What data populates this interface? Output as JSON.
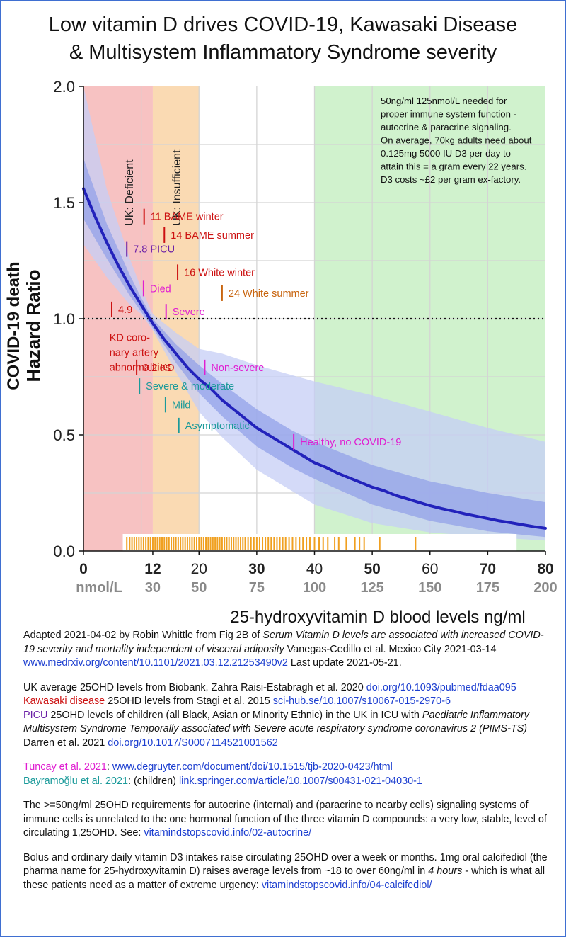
{
  "title_line1": "Low vitamin D drives COVID-19, Kawasaki Disease",
  "title_line2": "& Multisystem Inflammatory Syndrome severity",
  "colors": {
    "deficient": "#f6b7b7",
    "insufficient": "#f9d3a6",
    "sufficient": "#c8f0c4",
    "curve": "#2222bb",
    "band_inner": "#8f9ee8",
    "band_outer": "#c5cdf5",
    "rug": "#f0a020",
    "red": "#cc1111",
    "purple": "#6a1fa6",
    "magenta": "#e01ed1",
    "teal": "#1a9a9a",
    "orange": "#c8650f",
    "link": "#1d3fd0"
  },
  "chart_data": {
    "type": "line",
    "xlabel": "25-hydroxyvitamin D blood levels ng/ml",
    "ylabel_line1": "COVID-19 death",
    "ylabel_line2": "Hazard Ratio",
    "xlim": [
      0,
      80
    ],
    "ylim": [
      0,
      2.0
    ],
    "x_ticks": [
      "0",
      "12",
      "20",
      "30",
      "40",
      "50",
      "60",
      "70",
      "80"
    ],
    "x_tick_values": [
      0,
      12,
      20,
      30,
      40,
      50,
      60,
      70,
      80
    ],
    "x_ticks_bold": [
      0,
      12,
      30,
      50,
      70,
      80
    ],
    "y_ticks": [
      "0.0",
      "0.5",
      "1.0",
      "1.5",
      "2.0"
    ],
    "y_tick_values": [
      0,
      0.5,
      1.0,
      1.5,
      2.0
    ],
    "nmol_label": "nmol/L",
    "nmol_ticks": [
      "30",
      "50",
      "75",
      "100",
      "125",
      "150",
      "175",
      "200"
    ],
    "nmol_tick_values": [
      12,
      20,
      30,
      40,
      50,
      60,
      70,
      80
    ],
    "reference_line": {
      "y": 1.0,
      "style": "dotted"
    },
    "zones": [
      {
        "from": 0,
        "to": 12,
        "label": "UK: Deficient"
      },
      {
        "from": 12,
        "to": 20,
        "label": "UK: Insufficient"
      },
      {
        "from": 40,
        "to": 80,
        "label": ""
      }
    ],
    "series": [
      {
        "values": [
          [
            0,
            1.56
          ],
          [
            2,
            1.44
          ],
          [
            4,
            1.33
          ],
          [
            6,
            1.23
          ],
          [
            8,
            1.14
          ],
          [
            10,
            1.06
          ],
          [
            12,
            0.98
          ],
          [
            14,
            0.91
          ],
          [
            16,
            0.85
          ],
          [
            18,
            0.79
          ],
          [
            20,
            0.74
          ],
          [
            22,
            0.7
          ],
          [
            24,
            0.65
          ],
          [
            26,
            0.61
          ],
          [
            28,
            0.57
          ],
          [
            30,
            0.53
          ],
          [
            32,
            0.5
          ],
          [
            34,
            0.47
          ],
          [
            36,
            0.44
          ],
          [
            38,
            0.41
          ],
          [
            40,
            0.38
          ],
          [
            42,
            0.36
          ],
          [
            44,
            0.335
          ],
          [
            46,
            0.315
          ],
          [
            48,
            0.295
          ],
          [
            50,
            0.275
          ],
          [
            52,
            0.26
          ],
          [
            54,
            0.24
          ],
          [
            56,
            0.225
          ],
          [
            58,
            0.21
          ],
          [
            60,
            0.195
          ],
          [
            62,
            0.183
          ],
          [
            64,
            0.172
          ],
          [
            66,
            0.16
          ],
          [
            68,
            0.15
          ],
          [
            70,
            0.14
          ],
          [
            72,
            0.13
          ],
          [
            74,
            0.122
          ],
          [
            76,
            0.113
          ],
          [
            78,
            0.105
          ],
          [
            80,
            0.098
          ]
        ]
      }
    ],
    "ci_inner": [
      [
        0,
        1.69,
        1.43
      ],
      [
        4,
        1.41,
        1.26
      ],
      [
        8,
        1.19,
        1.1
      ],
      [
        10,
        1.09,
        1.03
      ],
      [
        12,
        1.0,
        0.96
      ],
      [
        16,
        0.89,
        0.81
      ],
      [
        20,
        0.8,
        0.68
      ],
      [
        24,
        0.72,
        0.58
      ],
      [
        30,
        0.61,
        0.45
      ],
      [
        36,
        0.52,
        0.36
      ],
      [
        40,
        0.47,
        0.31
      ],
      [
        50,
        0.37,
        0.2
      ],
      [
        60,
        0.3,
        0.13
      ],
      [
        70,
        0.25,
        0.085
      ],
      [
        80,
        0.21,
        0.06
      ]
    ],
    "ci_outer": [
      [
        0,
        2.0,
        1.32
      ],
      [
        4,
        1.56,
        1.18
      ],
      [
        8,
        1.26,
        1.06
      ],
      [
        10,
        1.13,
        1.02
      ],
      [
        12,
        1.02,
        0.95
      ],
      [
        16,
        0.94,
        0.77
      ],
      [
        20,
        0.87,
        0.6
      ],
      [
        24,
        0.85,
        0.49
      ],
      [
        30,
        0.8,
        0.35
      ],
      [
        40,
        0.73,
        0.2
      ],
      [
        50,
        0.67,
        0.12
      ],
      [
        60,
        0.6,
        0.08
      ],
      [
        70,
        0.53,
        0.06
      ],
      [
        80,
        0.47,
        0.045
      ]
    ],
    "rug_x": [
      7.5,
      8,
      8.4,
      8.8,
      9.2,
      9.6,
      10,
      10.4,
      10.8,
      11.2,
      11.6,
      12,
      12.4,
      12.8,
      13.2,
      13.6,
      14,
      14.4,
      14.8,
      15.2,
      15.6,
      16,
      16.4,
      16.8,
      17.2,
      17.6,
      18,
      18.4,
      18.8,
      19.2,
      19.6,
      20,
      20.4,
      20.8,
      21.2,
      21.6,
      22,
      22.4,
      22.8,
      23.2,
      23.6,
      24,
      24.4,
      24.8,
      25.2,
      25.6,
      26,
      26.4,
      26.8,
      27.2,
      27.6,
      28,
      28.5,
      29,
      29.5,
      30,
      30.5,
      31,
      31.5,
      32,
      32.5,
      33,
      33.5,
      34,
      34.5,
      35,
      35.6,
      36.2,
      36.8,
      37.4,
      38,
      38.6,
      39.2,
      40,
      40.8,
      41.5,
      42.3,
      43.5,
      44.2,
      45.5,
      47,
      47.8,
      48.6,
      51.3,
      57.5
    ],
    "annotations": [
      {
        "x": 10.5,
        "y": 1.44,
        "text": "11 BAME winter",
        "color": "red"
      },
      {
        "x": 14,
        "y": 1.36,
        "text": "14 BAME summer",
        "color": "red"
      },
      {
        "x": 7.5,
        "y": 1.3,
        "text": "7.8 PICU",
        "color": "purple"
      },
      {
        "x": 16.3,
        "y": 1.2,
        "text": "16 White winter",
        "color": "red"
      },
      {
        "x": 24,
        "y": 1.11,
        "text": "24 White summer",
        "color": "orange"
      },
      {
        "x": 10.4,
        "y": 1.13,
        "text": "Died",
        "color": "magenta"
      },
      {
        "x": 14.3,
        "y": 1.03,
        "text": "Severe",
        "color": "magenta"
      },
      {
        "x": 4.9,
        "y": 1.04,
        "text": "4.9",
        "color": "red"
      },
      {
        "x": 9.2,
        "y": 0.79,
        "text": "9.2 KD",
        "color": "red"
      },
      {
        "x": 21,
        "y": 0.79,
        "text": "Non-severe",
        "color": "magenta"
      },
      {
        "x": 9.7,
        "y": 0.71,
        "text": "Severe &  moderate",
        "color": "teal"
      },
      {
        "x": 14.2,
        "y": 0.63,
        "text": "Mild",
        "color": "teal"
      },
      {
        "x": 16.5,
        "y": 0.54,
        "text": "Asymptomatic",
        "color": "teal"
      },
      {
        "x": 36.4,
        "y": 0.47,
        "text": "Healthy, no COVID-19",
        "color": "magenta"
      }
    ],
    "kd_label": [
      "KD coro-",
      "nary artery",
      "abnormalities"
    ],
    "info_box": [
      "50ng/ml 125nmol/L needed for",
      "proper immune system function -",
      "autocrine & paracrine signaling.",
      "On average, 70kg adults need about",
      "0.125mg 5000 IU D3 per day to",
      "attain this = a gram every 22 years.",
      "D3 costs ~£2 per gram ex-factory."
    ]
  },
  "caption": {
    "p1_a": "Adapted 2021-04-02 by Robin Whittle from Fig 2B of ",
    "p1_title": "Serum Vitamin D levels are associated with increased COVID-19 severity and  mortality independent of visceral adiposity",
    "p1_b": " Vanegas-Cedillo et al. Mexico City 2021-03-14 ",
    "p1_link": "www.medrxiv.org/content/10.1101/2021.03.12.21253490v2",
    "p1_c": "  Last update 2021-05-21.",
    "p2_a": "UK average 25OHD levels from Biobank, Zahra Raisi-Estabragh et al. 2020 ",
    "p2_link1": "doi.org/10.1093/pubmed/fdaa095",
    "p2_kd": "Kawasaki disease",
    "p2_b": " 25OHD levels from Stagi et al. 2015 ",
    "p2_link2": "sci-hub.se/10.1007/s10067-015-2970-6",
    "p2_picu": "PICU",
    "p2_c": " 25OHD levels of children (all Black, Asian or Minority Ethnic) in the UK in ICU with ",
    "p2_title": "Paediatric Inflammatory Multisystem Syndrome Temporally associated with Severe acute respiratory syndrome coronavirus 2 (PIMS-TS)",
    "p2_d": " Darren et al. 2021 ",
    "p2_link3": "doi.org/10.1017/S0007114521001562",
    "p3_tuncay": "Tuncay et al. 2021",
    "p3_a": ": ",
    "p3_link1": "www.degruyter.com/document/doi/10.1515/tjb-2020-0423/html",
    "p3_bayr": "Bayramoğlu et al. 2021",
    "p3_b": ": (children) ",
    "p3_link2": "link.springer.com/article/10.1007/s00431-021-04030-1",
    "p4_a": "The >=50ng/ml 25OHD requirements for autocrine (internal) and (paracrine to nearby cells) signaling systems of immune cells is unrelated to the one hormonal function of the three vitamin D compounds: a very low, stable, level of circulating 1,25OHD.  See:  ",
    "p4_link": "vitamindstopscovid.info/02-autocrine/",
    "p5_a": "Bolus and ordinary daily vitamin D3 intakes raise circulating 25OHD over a week or months.  1mg oral calcifediol (the pharma name for 25-hydroxyvitamin D) raises average levels from ~18 to over 60ng/ml in ",
    "p5_em": "4 hours",
    "p5_b": " - which is what all these patients need as a matter of extreme urgency:  ",
    "p5_link": "vitamindstopscovid.info/04-calcifediol/"
  }
}
